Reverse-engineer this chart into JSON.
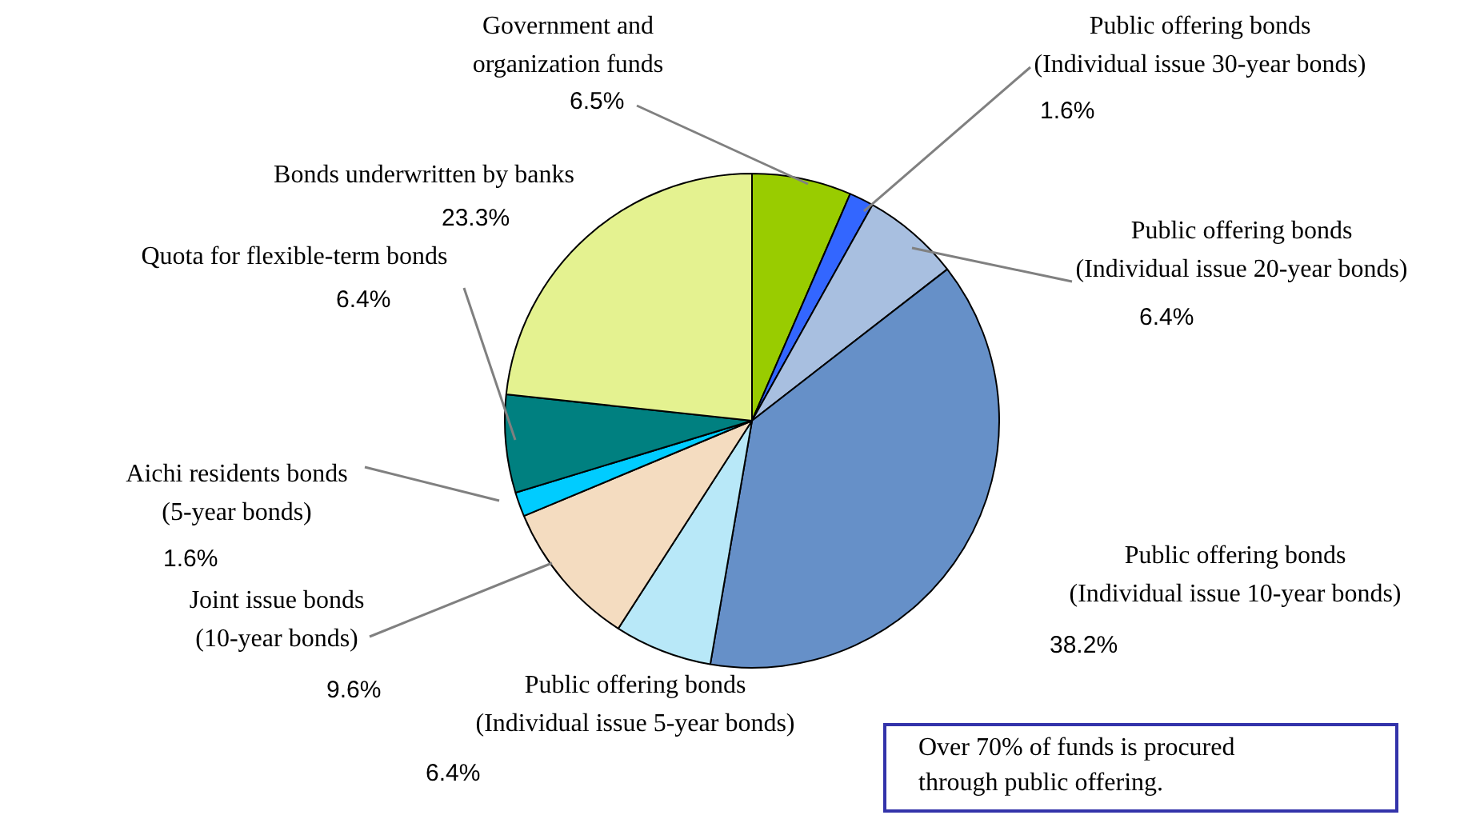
{
  "chart_data": {
    "type": "pie",
    "categories": [
      "Government and\norganization funds",
      "Public offering bonds\n(Individual issue 30-year bonds)",
      "Public offering bonds\n(Individual issue 20-year bonds)",
      "Public offering bonds\n(Individual issue 10-year bonds)",
      "Public offering bonds\n(Individual issue 5-year bonds)",
      "Joint issue bonds\n(10-year bonds)",
      "Aichi residents bonds\n(5-year bonds)",
      "Quota for flexible-term bonds",
      "Bonds underwritten by banks"
    ],
    "values": [
      6.5,
      1.6,
      6.4,
      38.2,
      6.4,
      9.6,
      1.6,
      6.4,
      23.3
    ],
    "value_labels": [
      "6.5%",
      "1.6%",
      "6.4%",
      "38.2%",
      "6.4%",
      "9.6%",
      "1.6%",
      "6.4%",
      "23.3%"
    ],
    "colors": [
      "#99cc00",
      "#3366ff",
      "#a8bfe0",
      "#6690c8",
      "#b8e8f8",
      "#f4dcc0",
      "#00ccff",
      "#008080",
      "#e4f290"
    ],
    "annotations": [
      "Over 70% of funds is procured\nthrough public offering."
    ],
    "legend": false
  }
}
